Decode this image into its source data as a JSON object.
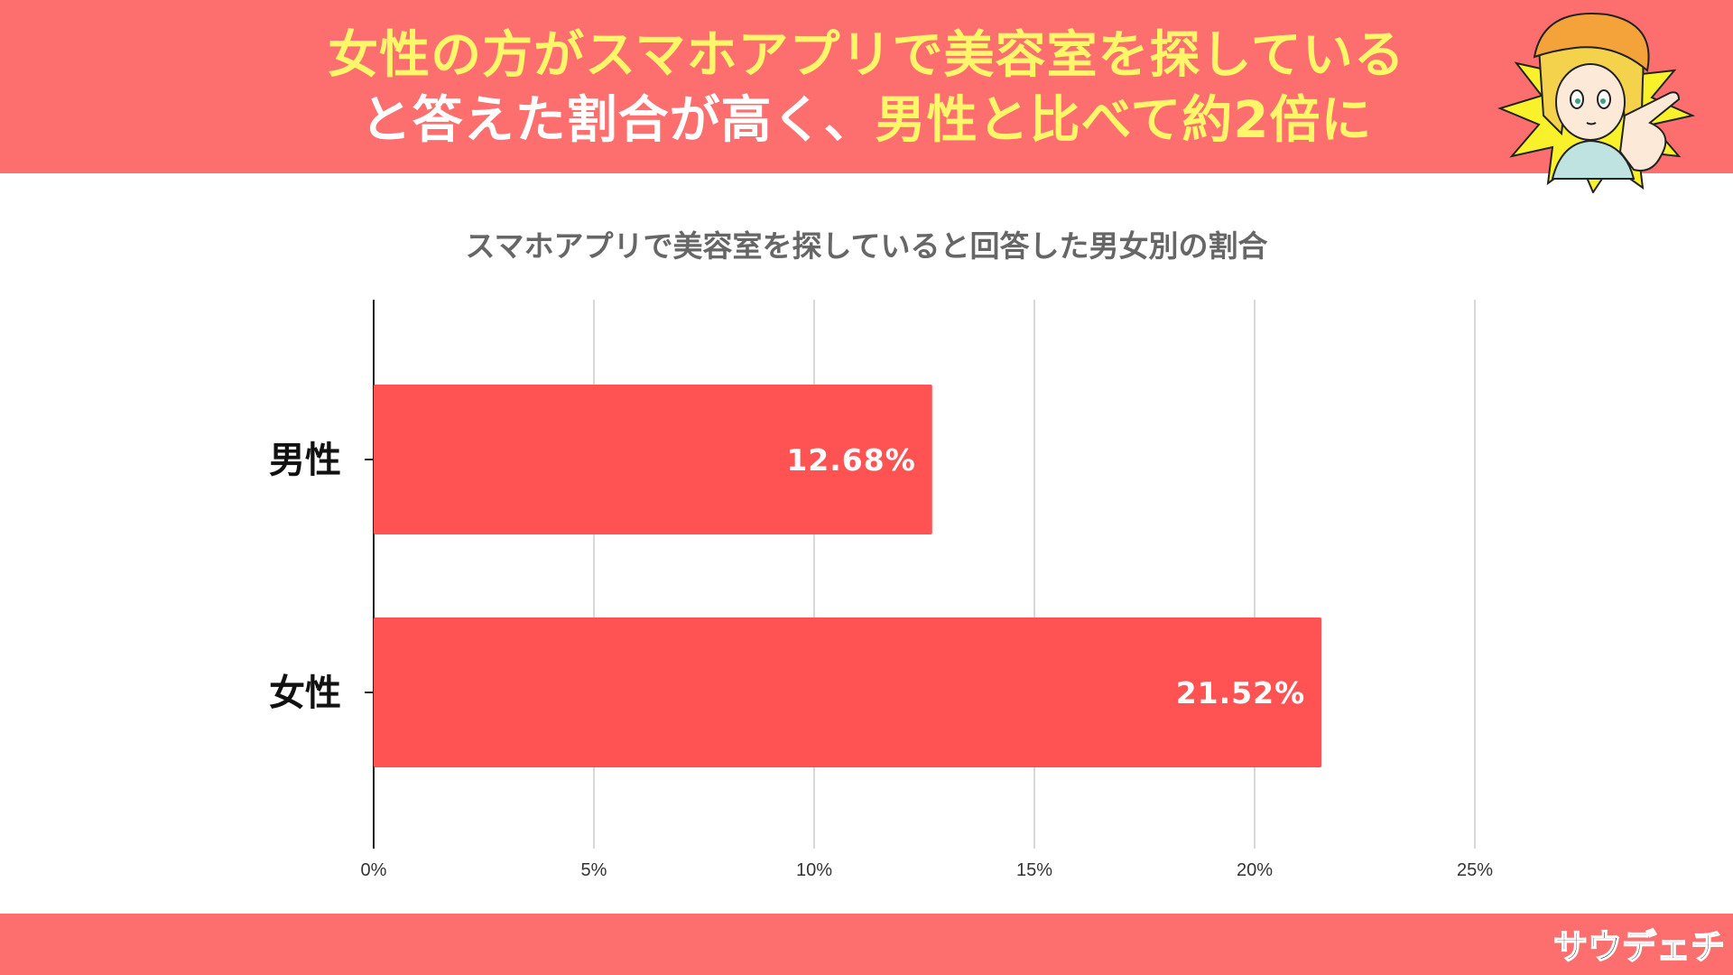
{
  "header": {
    "line1": "女性の方がスマホアプリで美容室を探している",
    "line2_white": "と答えた割合が高く、",
    "line2_yellow": "男性と比べて約2倍に"
  },
  "brand": {
    "logo_text": "サウデェチ"
  },
  "colors": {
    "header_bg": "#fd6e6e",
    "bar": "#ff5252",
    "highlight": "#fff66a"
  },
  "chart_data": {
    "type": "bar",
    "orientation": "horizontal",
    "title": "スマホアプリで美容室を探していると回答した男女別の割合",
    "categories": [
      "男性",
      "女性"
    ],
    "values": [
      12.68,
      21.52
    ],
    "value_labels": [
      "12.68%",
      "21.52%"
    ],
    "xlim": [
      0,
      25
    ],
    "x_ticks": [
      0,
      5,
      10,
      15,
      20,
      25
    ],
    "x_tick_labels": [
      "0%",
      "5%",
      "10%",
      "15%",
      "20%",
      "25%"
    ],
    "grid": true,
    "legend": "none"
  }
}
